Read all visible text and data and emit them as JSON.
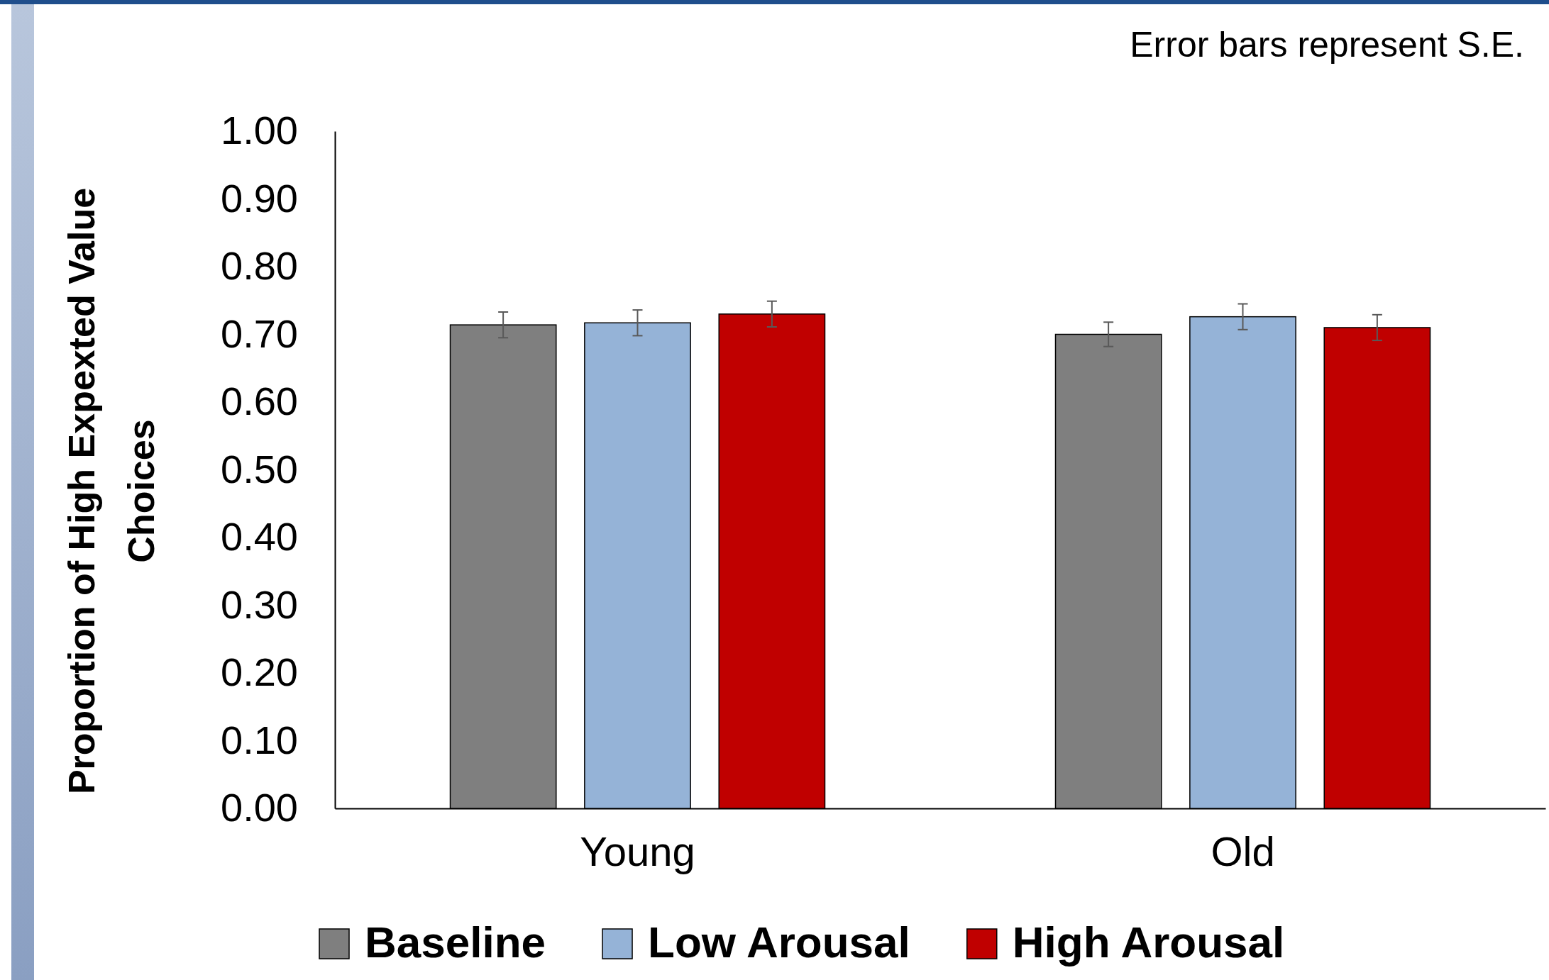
{
  "chart_data": {
    "type": "bar",
    "categories": [
      "Young",
      "Old"
    ],
    "ylabel": "Proportion of High Expexted Value Choices",
    "ylim": [
      0,
      1
    ],
    "yticks": [
      {
        "value": 0,
        "label": "0.00"
      },
      {
        "value": 0.1,
        "label": "0.10"
      },
      {
        "value": 0.2,
        "label": "0.20"
      },
      {
        "value": 0.3,
        "label": "0.30"
      },
      {
        "value": 0.4,
        "label": "0.40"
      },
      {
        "value": 0.5,
        "label": "0.50"
      },
      {
        "value": 0.6,
        "label": "0.60"
      },
      {
        "value": 0.7,
        "label": "0.70"
      },
      {
        "value": 0.8,
        "label": "0.80"
      },
      {
        "value": 0.9,
        "label": "0.90"
      },
      {
        "value": 1,
        "label": "1.00"
      }
    ],
    "series": [
      {
        "name": "Baseline",
        "color": "#7f7f7f",
        "values": [
          0.714,
          0.7
        ],
        "errors": [
          0.019,
          0.018
        ]
      },
      {
        "name": "Low Arousal",
        "color": "#95b3d7",
        "values": [
          0.717,
          0.726
        ],
        "errors": [
          0.019,
          0.019
        ]
      },
      {
        "name": "High Arousal",
        "color": "#c00000",
        "values": [
          0.73,
          0.71
        ],
        "errors": [
          0.019,
          0.019
        ]
      }
    ],
    "annotations": [
      "Error bars represent S.E."
    ],
    "legend": "bottom",
    "grid": false
  }
}
